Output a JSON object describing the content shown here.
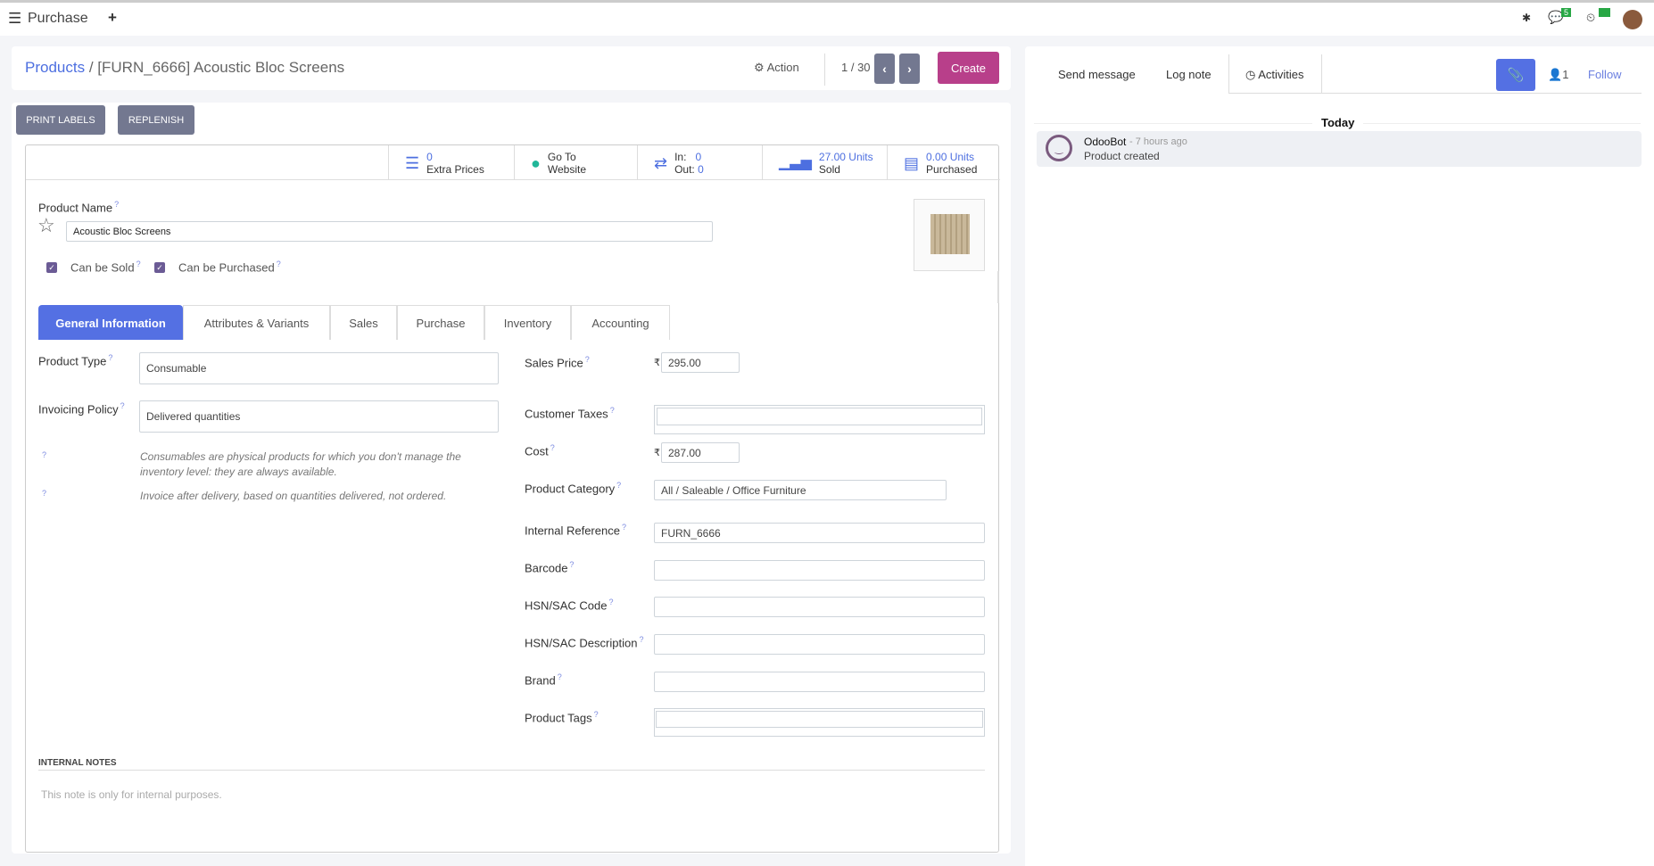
{
  "topbar": {
    "app": "Purchase",
    "plus": "+",
    "messages_count": "5",
    "activities_count": "0"
  },
  "breadcrumb": {
    "parent": "Products",
    "sep": "/",
    "current": "[FURN_6666] Acoustic Bloc Screens"
  },
  "control": {
    "action": "Action",
    "pager": "1 / 30",
    "create": "Create"
  },
  "header_buttons": {
    "print_labels": "PRINT LABELS",
    "replenish": "REPLENISH"
  },
  "stats": {
    "extra_prices_value": "0",
    "extra_prices_label": "Extra Prices",
    "website_1": "Go To",
    "website_2": "Website",
    "in_label": "In:",
    "in_value": "0",
    "out_label": "Out:",
    "out_value": "0",
    "sold_value": "27.00 Units",
    "sold_label": "Sold",
    "purchased_value": "0.00 Units",
    "purchased_label": "Purchased"
  },
  "product": {
    "name_label": "Product Name",
    "name": "Acoustic Bloc Screens",
    "can_be_sold": "Can be Sold",
    "can_be_purchased": "Can be Purchased"
  },
  "tabs": [
    "General Information",
    "Attributes & Variants",
    "Sales",
    "Purchase",
    "Inventory",
    "Accounting"
  ],
  "left": {
    "product_type_label": "Product Type",
    "product_type": "Consumable",
    "invoicing_label": "Invoicing Policy",
    "invoicing": "Delivered quantities",
    "help1": "Consumables are physical products for which you don't manage the inventory level: they are always available.",
    "help2": "Invoice after delivery, based on quantities delivered, not ordered."
  },
  "right": {
    "sales_price_label": "Sales Price",
    "currency": "₹",
    "sales_price": "295.00",
    "customer_taxes_label": "Customer Taxes",
    "cost_label": "Cost",
    "cost": "287.00",
    "category_label": "Product Category",
    "category": "All / Saleable / Office Furniture",
    "internal_ref_label": "Internal Reference",
    "internal_ref": "FURN_6666",
    "barcode_label": "Barcode",
    "hsn_code_label": "HSN/SAC Code",
    "hsn_desc_label": "HSN/SAC Description",
    "brand_label": "Brand",
    "tags_label": "Product Tags"
  },
  "notes": {
    "title": "INTERNAL NOTES",
    "placeholder": "This note is only for internal purposes."
  },
  "chatter": {
    "send_message": "Send message",
    "log_note": "Log note",
    "activities": "Activities",
    "followers": "1",
    "follow": "Follow",
    "today": "Today",
    "author": "OdooBot",
    "time": "- 7 hours ago",
    "body": "Product created"
  },
  "colors": {
    "accent": "#5470e3",
    "create": "#b83f8a",
    "gray_button": "#737890"
  }
}
